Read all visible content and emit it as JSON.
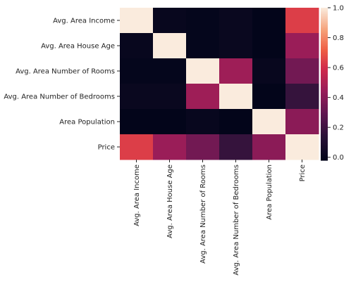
{
  "chart_data": {
    "type": "heatmap",
    "title": "",
    "xlabel": "",
    "ylabel": "",
    "rows": [
      "Avg. Area Income",
      "Avg. Area House Age",
      "Avg. Area Number of Rooms",
      "Avg. Area Number of Bedrooms",
      "Area Population",
      "Price"
    ],
    "columns": [
      "Avg. Area Income",
      "Avg. Area House Age",
      "Avg. Area Number of Rooms",
      "Avg. Area Number of Bedrooms",
      "Area Population",
      "Price"
    ],
    "values": [
      [
        1.0,
        -0.0,
        -0.01,
        0.01,
        -0.02,
        0.64
      ],
      [
        -0.0,
        1.0,
        -0.01,
        0.01,
        -0.02,
        0.45
      ],
      [
        -0.01,
        -0.01,
        1.0,
        0.46,
        0.0,
        0.34
      ],
      [
        0.01,
        0.01,
        0.46,
        1.0,
        -0.02,
        0.17
      ],
      [
        -0.02,
        -0.02,
        0.0,
        -0.02,
        1.0,
        0.41
      ],
      [
        0.64,
        0.45,
        0.34,
        0.17,
        0.41,
        1.0
      ]
    ],
    "colorbar": {
      "min": -0.02,
      "max": 1.0,
      "ticks": [
        0.0,
        0.2,
        0.4,
        0.6,
        0.8,
        1.0
      ],
      "tick_labels": [
        "0.0",
        "0.2",
        "0.4",
        "0.6",
        "0.8",
        "1.0"
      ]
    },
    "colormap": "rocket"
  }
}
